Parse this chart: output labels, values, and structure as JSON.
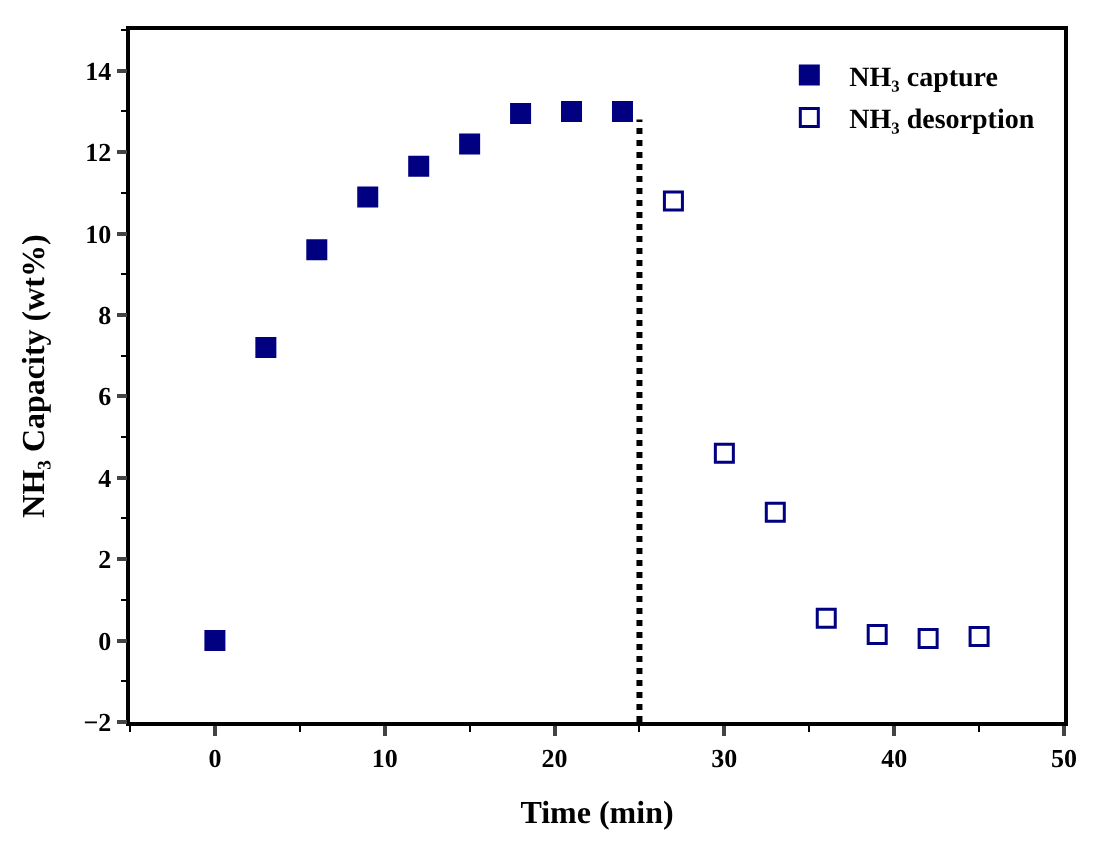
{
  "chart_data": {
    "type": "scatter",
    "xlabel": "Time (min)",
    "ylabel": "NH₃ Capacity (wt%)",
    "xlim": [
      -5,
      50
    ],
    "xticks": [
      0,
      10,
      20,
      30,
      40,
      50
    ],
    "ylim": [
      -2,
      15
    ],
    "yticks": [
      -2,
      0,
      2,
      4,
      6,
      8,
      10,
      12,
      14
    ],
    "grid": false,
    "legend": "top right",
    "series": [
      {
        "name": "NH₃ capture",
        "color": "#000080",
        "marker": "square",
        "x": [
          0,
          3,
          6,
          9,
          12,
          15,
          18,
          21,
          24
        ],
        "values": [
          0,
          7.2,
          9.6,
          10.9,
          11.65,
          12.2,
          12.95,
          13.0,
          13.0
        ]
      },
      {
        "name": "NH₃ desorption",
        "color": "#000080",
        "marker": "square",
        "x": [
          27,
          30,
          33,
          36,
          39,
          42,
          45
        ],
        "values": [
          10.8,
          4.6,
          3.15,
          0.55,
          0.15,
          0.05,
          0.1
        ]
      },
      {
        "type": "line",
        "color": "#000000",
        "marker": "none",
        "line_style": "dotted",
        "x": [
          25,
          25
        ],
        "values": [
          -2,
          12.8
        ]
      }
    ]
  }
}
